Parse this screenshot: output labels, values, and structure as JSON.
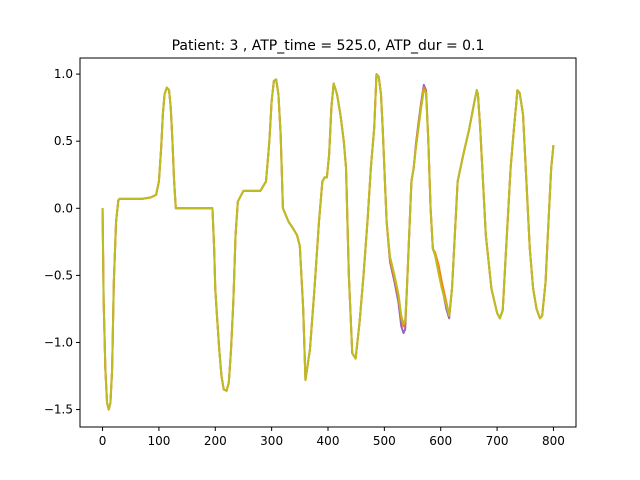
{
  "chart_data": {
    "type": "line",
    "title": "Patient: 3 , ATP_time = 525.0, ATP_dur = 0.1",
    "xlabel": "",
    "ylabel": "",
    "xlim": [
      -40,
      840
    ],
    "ylim": [
      -1.63,
      1.12
    ],
    "xticks": [
      0,
      100,
      200,
      300,
      400,
      500,
      600,
      700,
      800
    ],
    "yticks": [
      1.0,
      0.5,
      0.0,
      -0.5,
      -1.0,
      -1.5
    ],
    "ytick_labels": [
      "1.0",
      "0.5",
      "0.0",
      "−0.5",
      "−1.0",
      "−1.5"
    ],
    "grid": false,
    "legend": "none",
    "series": [
      {
        "color": "#9467bd",
        "x": [
          0,
          2,
          5,
          8,
          11,
          14,
          17,
          20,
          24,
          28,
          30,
          35,
          50,
          70,
          85,
          95,
          100,
          104,
          107,
          110,
          114,
          118,
          121,
          124,
          127,
          130,
          140,
          160,
          180,
          195,
          198,
          200,
          203,
          207,
          211,
          215,
          220,
          224,
          228,
          232,
          236,
          240,
          250,
          262,
          270,
          280,
          290,
          296,
          300,
          304,
          308,
          312,
          316,
          320,
          325,
          330,
          338,
          345,
          350,
          356,
          360,
          368,
          376,
          384,
          390,
          394,
          398,
          402,
          406,
          410,
          416,
          422,
          428,
          432,
          437,
          443,
          449,
          456,
          463,
          470,
          476,
          482,
          486,
          490,
          494,
          497,
          500,
          504,
          510,
          518,
          525,
          530,
          534,
          537,
          540,
          543,
          548,
          552,
          556,
          560,
          565,
          570,
          574,
          578,
          582,
          586,
          590,
          596,
          602,
          610,
          615,
          620,
          625,
          630,
          640,
          650,
          660,
          664,
          666,
          670,
          680,
          690,
          700,
          705,
          710,
          716,
          724,
          730,
          734,
          736,
          740,
          746,
          752,
          758,
          764,
          770,
          776,
          780,
          786,
          790,
          796,
          800
        ],
        "y": [
          0.0,
          -0.7,
          -1.2,
          -1.45,
          -1.5,
          -1.45,
          -1.2,
          -0.55,
          -0.1,
          0.06,
          0.07,
          0.07,
          0.07,
          0.07,
          0.08,
          0.1,
          0.2,
          0.45,
          0.7,
          0.85,
          0.9,
          0.88,
          0.75,
          0.5,
          0.2,
          0.0,
          0.0,
          0.0,
          0.0,
          0.0,
          -0.3,
          -0.6,
          -0.8,
          -1.05,
          -1.25,
          -1.35,
          -1.36,
          -1.3,
          -1.05,
          -0.7,
          -0.2,
          0.05,
          0.13,
          0.13,
          0.13,
          0.13,
          0.2,
          0.5,
          0.8,
          0.95,
          0.96,
          0.85,
          0.55,
          0.0,
          -0.05,
          -0.1,
          -0.15,
          -0.2,
          -0.28,
          -0.75,
          -1.28,
          -1.05,
          -0.6,
          -0.1,
          0.2,
          0.23,
          0.23,
          0.4,
          0.75,
          0.93,
          0.85,
          0.7,
          0.5,
          0.3,
          -0.5,
          -1.08,
          -1.12,
          -0.85,
          -0.5,
          -0.1,
          0.3,
          0.6,
          1.0,
          0.98,
          0.85,
          0.6,
          0.3,
          -0.1,
          -0.4,
          -0.55,
          -0.7,
          -0.88,
          -0.93,
          -0.9,
          -0.6,
          -0.3,
          0.2,
          0.3,
          0.48,
          0.62,
          0.78,
          0.92,
          0.88,
          0.5,
          0.0,
          -0.3,
          -0.35,
          -0.45,
          -0.58,
          -0.75,
          -0.82,
          -0.6,
          -0.2,
          0.2,
          0.4,
          0.58,
          0.8,
          0.88,
          0.85,
          0.6,
          -0.2,
          -0.6,
          -0.78,
          -0.82,
          -0.76,
          -0.3,
          0.3,
          0.6,
          0.78,
          0.88,
          0.86,
          0.7,
          0.2,
          -0.3,
          -0.6,
          -0.75,
          -0.82,
          -0.8,
          -0.55,
          -0.2,
          0.3,
          0.47
        ]
      },
      {
        "color": "#ff7f0e",
        "x": [
          0,
          2,
          5,
          8,
          11,
          14,
          17,
          20,
          24,
          28,
          30,
          35,
          50,
          70,
          85,
          95,
          100,
          104,
          107,
          110,
          114,
          118,
          121,
          124,
          127,
          130,
          140,
          160,
          180,
          195,
          198,
          200,
          203,
          207,
          211,
          215,
          220,
          224,
          228,
          232,
          236,
          240,
          250,
          262,
          270,
          280,
          290,
          296,
          300,
          304,
          308,
          312,
          316,
          320,
          325,
          330,
          338,
          345,
          350,
          356,
          360,
          368,
          376,
          384,
          390,
          394,
          398,
          402,
          406,
          410,
          416,
          422,
          428,
          432,
          437,
          443,
          449,
          456,
          463,
          470,
          476,
          482,
          486,
          490,
          494,
          497,
          500,
          504,
          510,
          518,
          525,
          530,
          534,
          537,
          540,
          543,
          548,
          552,
          556,
          560,
          565,
          570,
          574,
          578,
          582,
          586,
          590,
          596,
          602,
          610,
          615,
          620,
          625,
          630,
          640,
          650,
          660,
          664,
          666,
          670,
          680,
          690,
          700,
          705,
          710,
          716,
          724,
          730,
          734,
          736,
          740,
          746,
          752,
          758,
          764,
          770,
          776,
          780,
          786,
          790,
          796,
          800
        ],
        "y": [
          0.0,
          -0.7,
          -1.2,
          -1.45,
          -1.5,
          -1.45,
          -1.2,
          -0.55,
          -0.1,
          0.06,
          0.07,
          0.07,
          0.07,
          0.07,
          0.08,
          0.1,
          0.2,
          0.45,
          0.7,
          0.85,
          0.9,
          0.88,
          0.75,
          0.5,
          0.2,
          0.0,
          0.0,
          0.0,
          0.0,
          0.0,
          -0.3,
          -0.6,
          -0.8,
          -1.05,
          -1.25,
          -1.35,
          -1.36,
          -1.3,
          -1.05,
          -0.7,
          -0.2,
          0.05,
          0.13,
          0.13,
          0.13,
          0.13,
          0.2,
          0.5,
          0.8,
          0.95,
          0.96,
          0.85,
          0.55,
          0.0,
          -0.05,
          -0.1,
          -0.15,
          -0.2,
          -0.28,
          -0.75,
          -1.28,
          -1.05,
          -0.6,
          -0.1,
          0.2,
          0.23,
          0.23,
          0.4,
          0.75,
          0.93,
          0.85,
          0.7,
          0.5,
          0.3,
          -0.5,
          -1.08,
          -1.12,
          -0.85,
          -0.5,
          -0.1,
          0.3,
          0.6,
          1.0,
          0.98,
          0.85,
          0.6,
          0.3,
          -0.1,
          -0.38,
          -0.52,
          -0.66,
          -0.82,
          -0.88,
          -0.85,
          -0.6,
          -0.3,
          0.2,
          0.3,
          0.46,
          0.6,
          0.76,
          0.9,
          0.87,
          0.5,
          0.0,
          -0.3,
          -0.33,
          -0.42,
          -0.55,
          -0.7,
          -0.8,
          -0.6,
          -0.2,
          0.2,
          0.4,
          0.58,
          0.8,
          0.88,
          0.85,
          0.6,
          -0.2,
          -0.6,
          -0.78,
          -0.82,
          -0.76,
          -0.3,
          0.3,
          0.6,
          0.78,
          0.88,
          0.86,
          0.7,
          0.2,
          -0.3,
          -0.6,
          -0.75,
          -0.82,
          -0.8,
          -0.55,
          -0.2,
          0.3,
          0.47
        ]
      },
      {
        "color": "#bcbd22",
        "x": [
          0,
          2,
          5,
          8,
          11,
          14,
          17,
          20,
          24,
          28,
          30,
          35,
          50,
          70,
          85,
          95,
          100,
          104,
          107,
          110,
          114,
          118,
          121,
          124,
          127,
          130,
          140,
          160,
          180,
          195,
          198,
          200,
          203,
          207,
          211,
          215,
          220,
          224,
          228,
          232,
          236,
          240,
          250,
          262,
          270,
          280,
          290,
          296,
          300,
          304,
          308,
          312,
          316,
          320,
          325,
          330,
          338,
          345,
          350,
          356,
          360,
          368,
          376,
          384,
          390,
          394,
          398,
          402,
          406,
          410,
          416,
          422,
          428,
          432,
          437,
          443,
          449,
          456,
          463,
          470,
          476,
          482,
          486,
          490,
          494,
          497,
          500,
          504,
          510,
          518,
          525,
          530,
          534,
          537,
          540,
          543,
          548,
          552,
          556,
          560,
          565,
          570,
          574,
          578,
          582,
          586,
          590,
          596,
          602,
          610,
          615,
          620,
          625,
          630,
          640,
          650,
          660,
          664,
          666,
          670,
          680,
          690,
          700,
          705,
          710,
          716,
          724,
          730,
          734,
          736,
          740,
          746,
          752,
          758,
          764,
          770,
          776,
          780,
          786,
          790,
          796,
          800
        ],
        "y": [
          0.0,
          -0.7,
          -1.2,
          -1.45,
          -1.5,
          -1.45,
          -1.2,
          -0.55,
          -0.1,
          0.06,
          0.07,
          0.07,
          0.07,
          0.07,
          0.08,
          0.1,
          0.2,
          0.45,
          0.7,
          0.85,
          0.9,
          0.88,
          0.75,
          0.5,
          0.2,
          0.0,
          0.0,
          0.0,
          0.0,
          0.0,
          -0.3,
          -0.6,
          -0.8,
          -1.05,
          -1.25,
          -1.35,
          -1.36,
          -1.3,
          -1.05,
          -0.7,
          -0.2,
          0.05,
          0.13,
          0.13,
          0.13,
          0.13,
          0.2,
          0.5,
          0.8,
          0.95,
          0.96,
          0.85,
          0.55,
          0.0,
          -0.05,
          -0.1,
          -0.15,
          -0.2,
          -0.28,
          -0.75,
          -1.28,
          -1.05,
          -0.6,
          -0.1,
          0.2,
          0.23,
          0.23,
          0.4,
          0.75,
          0.93,
          0.85,
          0.7,
          0.5,
          0.3,
          -0.5,
          -1.08,
          -1.12,
          -0.85,
          -0.5,
          -0.1,
          0.3,
          0.6,
          1.0,
          0.98,
          0.85,
          0.6,
          0.3,
          -0.1,
          -0.36,
          -0.5,
          -0.64,
          -0.8,
          -0.86,
          -0.83,
          -0.6,
          -0.3,
          0.2,
          0.3,
          0.45,
          0.58,
          0.74,
          0.88,
          0.86,
          0.5,
          0.0,
          -0.3,
          -0.35,
          -0.48,
          -0.6,
          -0.72,
          -0.8,
          -0.6,
          -0.2,
          0.2,
          0.4,
          0.58,
          0.8,
          0.88,
          0.85,
          0.6,
          -0.2,
          -0.6,
          -0.78,
          -0.82,
          -0.76,
          -0.3,
          0.3,
          0.6,
          0.78,
          0.88,
          0.86,
          0.7,
          0.2,
          -0.3,
          -0.6,
          -0.75,
          -0.82,
          -0.8,
          -0.55,
          -0.2,
          0.3,
          0.47
        ]
      }
    ]
  }
}
